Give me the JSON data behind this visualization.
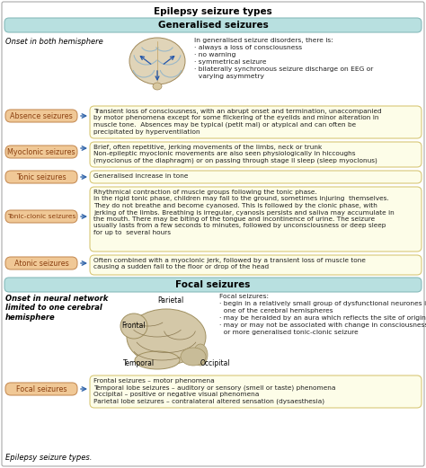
{
  "title": "Epilepsy seizure types",
  "subtitle_footer": "Epilepsy seizure types.",
  "section1_title": "Generalised seizures",
  "section2_title": "Focal seizures",
  "section_color": "#b8e0e0",
  "bg_color": "#ffffff",
  "box_fill": "#f0c896",
  "box_text_color": "#8b4010",
  "box_edge_color": "#c8905a",
  "content_box_fill": "#fdfde8",
  "content_box_stroke": "#d8c878",
  "arrow_color": "#3366aa",
  "onset1_text": "Onset in both hemisphere",
  "onset1_bullets": "In generalised seizure disorders, there is:\n· always a loss of consciousness\n· no warning\n· symmetrical seizure\n· bilaterally synchronous seizure discharge on EEG or\n  varying asymmetry",
  "absence_label": "Absence seizures",
  "absence_text": "Transient loss of consciousness, with an abrupt onset and termination, unaccompanied\nby motor phenomena except for some flickering of the eyelids and minor alteration in\nmuscle tone.  Absences may be typical (petit mal) or atypical and can often be\nprecipitated by hyperventilation",
  "myoclonic_label": "Myoclonic seizures",
  "myoclonic_text": "Brief, often repetitive, jerking movements of the limbs, neck or trunk\nNon-epileptic myoclonic movements are also seen physiologically in hiccoughs\n(myoclonus of the diaphragm) or on passing through stage II sleep (sleep myoclonus)",
  "tonic_label": "Tonic seizures",
  "tonic_text": "Generalised increase in tone",
  "tonic_clonic_label": "Tonic-clonic seizures",
  "tonic_clonic_text": "Rhythmical contraction of muscle groups following the tonic phase.\nIn the rigid tonic phase, children may fall to the ground, sometimes injuring  themselves.\nThey do not breathe and become cyanosed. This is followed by the clonic phase, with\njerking of the limbs. Breathing is irregular, cyanosis persists and saliva may accumulate in\nthe mouth. There may be biting of the tongue and incontinence of urine. The seizure\nusually lasts from a few seconds to minutes, followed by unconsciousness or deep sleep\nfor up to  several hours",
  "atonic_label": "Atonic seizures",
  "atonic_text": "Often combined with a myoclonic jerk, followed by a transient loss of muscle tone\ncausing a sudden fall to the floor or drop of the head",
  "onset2_text": "Onset in neural network\nlimited to one cerebral\nhemisphere",
  "brain2_labels": [
    "Parietal",
    "Frontal",
    "Temporal",
    "Occipital"
  ],
  "focal_intro": "Focal seizures:\n· begin in a relatively small group of dysfunctional neurones in\n  one of the cerebral hemispheres\n· may be heralded by an aura which reflects the site of origin\n· may or may not be associated with change in consciousness\n  or more generalised tonic-clonic seizure",
  "focal_label": "Focal seizures",
  "focal_text": "Frontal seizures – motor phenomena\nTemporal lobe seizures – auditory or sensory (smell or taste) phenomena\nOccipital – positive or negative visual phenomena\nParietal lobe seizures – contralateral altered sensation (dysaesthesia)"
}
